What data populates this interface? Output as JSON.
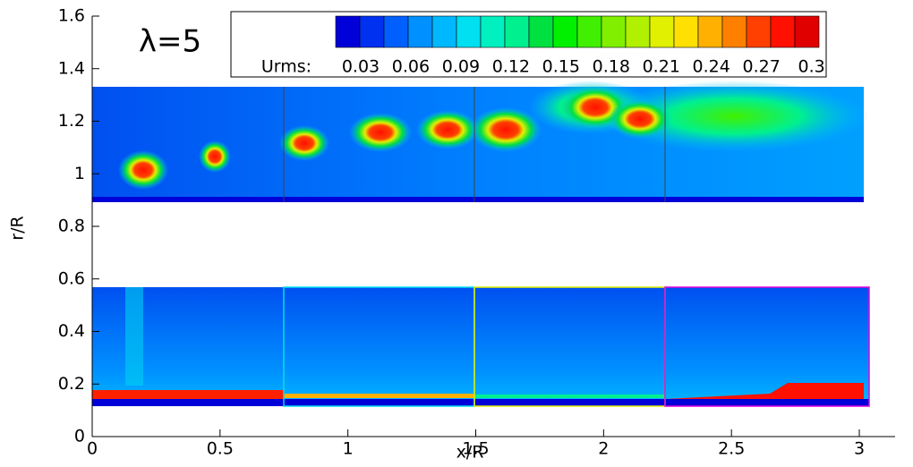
{
  "chart_data": {
    "type": "contour",
    "annotation": "λ=5",
    "xlabel": "x/R",
    "ylabel": "r/R",
    "xlim": [
      0,
      3.14
    ],
    "ylim": [
      0,
      1.6
    ],
    "xticks": [
      0,
      0.5,
      1,
      1.5,
      2,
      2.5,
      3
    ],
    "yticks": [
      0,
      0.2,
      0.4,
      0.6,
      0.8,
      1,
      1.2,
      1.4,
      1.6
    ],
    "colorbar": {
      "label": "Urms:",
      "clim": [
        0.015,
        0.3045
      ],
      "ticks": [
        0.03,
        0.06,
        0.09,
        0.12,
        0.15,
        0.18,
        0.21,
        0.24,
        0.27,
        0.3
      ],
      "colors": [
        "#0000d8",
        "#0030f0",
        "#0060ff",
        "#0090ff",
        "#00b8ff",
        "#00e0f0",
        "#00f0c0",
        "#00f090",
        "#00e040",
        "#00f000",
        "#40f000",
        "#80f000",
        "#b0f000",
        "#e0f000",
        "#ffe000",
        "#ffb000",
        "#ff8000",
        "#ff4000",
        "#ff1000",
        "#e00000"
      ]
    }
  }
}
